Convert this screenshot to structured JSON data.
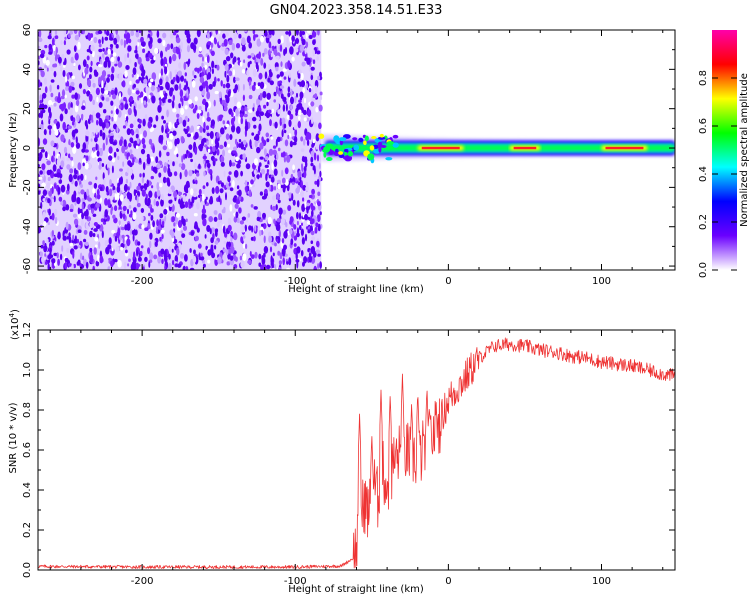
{
  "title": "GN04.2023.358.14.51.E33",
  "colors": {
    "spectrogram_dots": "#6a00ff",
    "snr_line": "#ee3333",
    "colorbar_stops": [
      "#ffffff",
      "#6a00ff",
      "#0000ff",
      "#00ffff",
      "#00ff00",
      "#ffff00",
      "#ff0000",
      "#ff00aa"
    ]
  },
  "chart_data": [
    {
      "type": "heatmap",
      "name": "spectrogram",
      "xlabel": "Height of straight line (km)",
      "ylabel": "Frequency (Hz)",
      "xlim": [
        -268,
        148
      ],
      "ylim": [
        -62,
        60
      ],
      "xticks": [
        -200,
        -100,
        0,
        100
      ],
      "xtick_labels": [
        "-200",
        "-100",
        "0",
        "100"
      ],
      "yticks": [
        -60,
        -40,
        -20,
        0,
        20,
        40,
        60
      ],
      "ytick_labels": [
        "-60",
        "-40",
        "-20",
        "0",
        "20",
        "40",
        "60"
      ],
      "noise_region_x": [
        -268,
        -83
      ],
      "signal_band": {
        "x_range": [
          -83,
          148
        ],
        "center_hz": 0,
        "halfwidth_hz_near_start": 7,
        "halfwidth_hz_far": 4,
        "peak_segments_x": [
          [
            -20,
            10
          ],
          [
            40,
            60
          ],
          [
            100,
            130
          ]
        ]
      },
      "colorbar": {
        "label": "Normalized spectral amplitude",
        "range": [
          0,
          1
        ],
        "ticks": [
          0.0,
          0.2,
          0.4,
          0.6,
          0.8
        ],
        "tick_labels": [
          "0.0",
          "0.2",
          "0.4",
          "0.6",
          "0.8"
        ]
      }
    },
    {
      "type": "line",
      "name": "snr",
      "xlabel": "Height of straight line (km)",
      "ylabel": "SNR (10 * v/v)",
      "y_multiplier_label": "(x10",
      "y_multiplier_exp": "4",
      "y_multiplier_close": ")",
      "xlim": [
        -268,
        148
      ],
      "ylim": [
        0,
        1.2
      ],
      "xticks": [
        -200,
        -100,
        0,
        100
      ],
      "xtick_labels": [
        "-200",
        "-100",
        "0",
        "100"
      ],
      "yticks": [
        0.0,
        0.2,
        0.4,
        0.6,
        0.8,
        1.0,
        1.2
      ],
      "ytick_labels": [
        "0.0",
        "0.2",
        "0.4",
        "0.6",
        "0.8",
        "1.0",
        "1.2"
      ],
      "trend_x": [
        -268,
        -200,
        -100,
        -70,
        -62,
        -58,
        -55,
        -52,
        -49,
        -46,
        -43,
        -40,
        -35,
        -30,
        -25,
        -20,
        -15,
        -10,
        -5,
        0,
        10,
        20,
        30,
        40,
        50,
        60,
        70,
        80,
        90,
        100,
        110,
        120,
        130,
        140,
        148
      ],
      "trend_y": [
        0.018,
        0.015,
        0.015,
        0.02,
        0.06,
        0.2,
        0.35,
        0.28,
        0.45,
        0.35,
        0.5,
        0.42,
        0.55,
        0.6,
        0.58,
        0.55,
        0.62,
        0.68,
        0.75,
        0.85,
        0.95,
        1.06,
        1.12,
        1.13,
        1.12,
        1.1,
        1.09,
        1.07,
        1.06,
        1.04,
        1.03,
        1.02,
        1.0,
        0.98,
        0.97
      ],
      "spikes": [
        [
          -58,
          0.78
        ],
        [
          -50,
          0.68
        ],
        [
          -44,
          0.9
        ],
        [
          -38,
          0.88
        ],
        [
          -30,
          0.98
        ],
        [
          -24,
          0.84
        ],
        [
          -20,
          0.9
        ],
        [
          -14,
          0.92
        ],
        [
          -8,
          0.85
        ]
      ]
    }
  ]
}
